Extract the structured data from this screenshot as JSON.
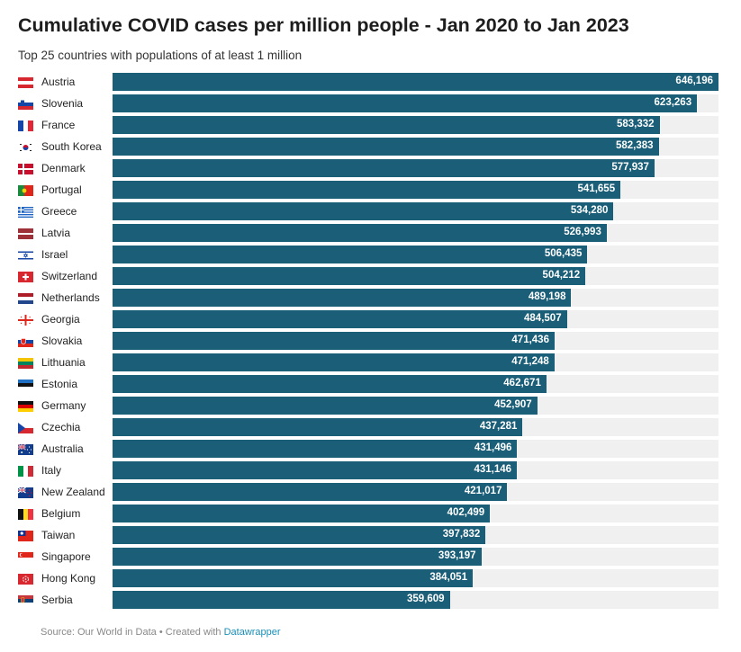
{
  "header": {
    "title": "Cumulative COVID cases per million people - Jan 2020 to Jan 2023",
    "subtitle": "Top 25 countries with populations of at least 1 million"
  },
  "footer": {
    "source": "Source: Our World in Data • Created with ",
    "tool": "Datawrapper"
  },
  "colors": {
    "bar": "#1a5e78",
    "track": "#f0f0f0",
    "link": "#1a8fb8"
  },
  "chart_data": {
    "type": "bar",
    "orientation": "horizontal",
    "title": "Cumulative COVID cases per million people - Jan 2020 to Jan 2023",
    "subtitle": "Top 25 countries with populations of at least 1 million",
    "xlim": [
      0,
      646196
    ],
    "grid": false,
    "categories": [
      "Austria",
      "Slovenia",
      "France",
      "South Korea",
      "Denmark",
      "Portugal",
      "Greece",
      "Latvia",
      "Israel",
      "Switzerland",
      "Netherlands",
      "Georgia",
      "Slovakia",
      "Lithuania",
      "Estonia",
      "Germany",
      "Czechia",
      "Australia",
      "Italy",
      "New Zealand",
      "Belgium",
      "Taiwan",
      "Singapore",
      "Hong Kong",
      "Serbia"
    ],
    "values": [
      646196,
      623263,
      583332,
      582383,
      577937,
      541655,
      534280,
      526993,
      506435,
      504212,
      489198,
      484507,
      471436,
      471248,
      462671,
      452907,
      437281,
      431496,
      431146,
      421017,
      402499,
      397832,
      393197,
      384051,
      359609
    ],
    "labels": [
      "646,196",
      "623,263",
      "583,332",
      "582,383",
      "577,937",
      "541,655",
      "534,280",
      "526,993",
      "506,435",
      "504,212",
      "489,198",
      "484,507",
      "471,436",
      "471,248",
      "462,671",
      "452,907",
      "437,281",
      "431,496",
      "431,146",
      "421,017",
      "402,499",
      "397,832",
      "393,197",
      "384,051",
      "359,609"
    ],
    "flags": [
      "austria-flag-icon",
      "slovenia-flag-icon",
      "france-flag-icon",
      "south-korea-flag-icon",
      "denmark-flag-icon",
      "portugal-flag-icon",
      "greece-flag-icon",
      "latvia-flag-icon",
      "israel-flag-icon",
      "switzerland-flag-icon",
      "netherlands-flag-icon",
      "georgia-flag-icon",
      "slovakia-flag-icon",
      "lithuania-flag-icon",
      "estonia-flag-icon",
      "germany-flag-icon",
      "czechia-flag-icon",
      "australia-flag-icon",
      "italy-flag-icon",
      "new-zealand-flag-icon",
      "belgium-flag-icon",
      "taiwan-flag-icon",
      "singapore-flag-icon",
      "hong-kong-flag-icon",
      "serbia-flag-icon"
    ]
  }
}
